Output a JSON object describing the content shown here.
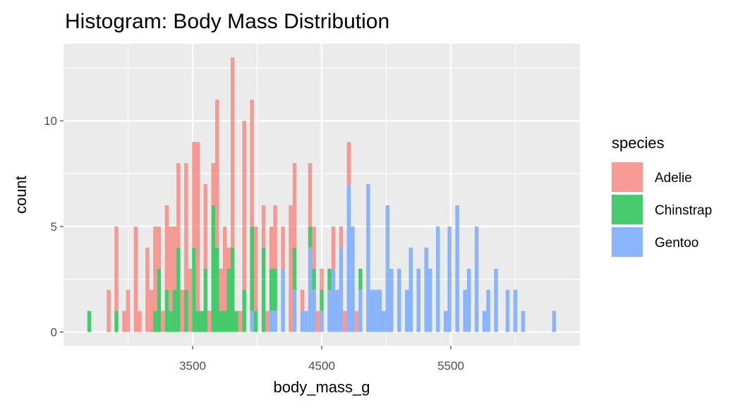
{
  "chart_data": {
    "type": "bar",
    "subtype": "stacked-histogram",
    "title": "Histogram: Body Mass Distribution",
    "xlabel": "body_mass_g",
    "ylabel": "count",
    "xlim": [
      2500,
      6500
    ],
    "ylim": [
      -0.65,
      13.65
    ],
    "x_ticks": [
      3500,
      4500,
      5500
    ],
    "x_tick_labels": [
      "3500",
      "4500",
      "5500"
    ],
    "y_ticks": [
      0,
      5,
      10
    ],
    "y_tick_labels": [
      "0",
      "5",
      "10"
    ],
    "grid": true,
    "legend_position": "right",
    "legend_title": "species",
    "first_bin_center": 2700,
    "binwidth": 30,
    "series": [
      {
        "name": "Adelie",
        "color": "#F8766D",
        "values": [
          0,
          0,
          0,
          0,
          0,
          2,
          0,
          4,
          0,
          1,
          2,
          0,
          5,
          1,
          0,
          4,
          2,
          4,
          2,
          1,
          4,
          4,
          3,
          4,
          2,
          6,
          3,
          5,
          8,
          0,
          4,
          1,
          2,
          7,
          2,
          4,
          1,
          9,
          0,
          1,
          8,
          0,
          6,
          4,
          0,
          2,
          1,
          2,
          3,
          0,
          2,
          0,
          6,
          4,
          0,
          1,
          0,
          3,
          2,
          1,
          1,
          0,
          0,
          2,
          0,
          1,
          1,
          2,
          0,
          1,
          0,
          0,
          0,
          0,
          0,
          0,
          0,
          0,
          0,
          0,
          0,
          0,
          0,
          0,
          0,
          0,
          0,
          0,
          0,
          0,
          0,
          0,
          0,
          0,
          0,
          0,
          0,
          0,
          0,
          0,
          0,
          0,
          0,
          0,
          0,
          0,
          0,
          0,
          0,
          0,
          0,
          0,
          0,
          0,
          0,
          0,
          0,
          0,
          0,
          0,
          0
        ]
      },
      {
        "name": "Chinstrap",
        "color": "#00BA38",
        "values": [
          1,
          0,
          0,
          0,
          0,
          0,
          0,
          1,
          0,
          0,
          0,
          0,
          0,
          0,
          0,
          0,
          0,
          1,
          3,
          0,
          2,
          1,
          2,
          4,
          0,
          2,
          0,
          4,
          1,
          1,
          3,
          0,
          6,
          4,
          1,
          1,
          3,
          4,
          1,
          0,
          2,
          0,
          4,
          1,
          0,
          4,
          0,
          2,
          2,
          0,
          0,
          0,
          0,
          2,
          0,
          0,
          0,
          1,
          1,
          0,
          1,
          0,
          1,
          0,
          0,
          0,
          0,
          0,
          0,
          0,
          1,
          0,
          0,
          0,
          0,
          0,
          0,
          0,
          0,
          0,
          0,
          0,
          0,
          0,
          0,
          0,
          0,
          0,
          0,
          0,
          0,
          0,
          0,
          0,
          0,
          0,
          0,
          0,
          0,
          0,
          0,
          0,
          0,
          0,
          0,
          0,
          0,
          0,
          0,
          0,
          0,
          0,
          0,
          0,
          0,
          0,
          0,
          0,
          0,
          0,
          0
        ]
      },
      {
        "name": "Gentoo",
        "color": "#619CFF",
        "values": [
          0,
          0,
          0,
          0,
          0,
          0,
          0,
          0,
          0,
          0,
          0,
          0,
          0,
          0,
          0,
          0,
          0,
          0,
          0,
          0,
          0,
          0,
          0,
          0,
          0,
          0,
          0,
          0,
          0,
          0,
          0,
          0,
          0,
          0,
          0,
          0,
          0,
          0,
          0,
          0,
          0,
          0,
          1,
          0,
          0,
          0,
          0,
          1,
          1,
          0,
          3,
          0,
          0,
          2,
          0,
          1,
          1,
          4,
          2,
          0,
          1,
          0,
          2,
          3,
          2,
          4,
          0,
          7,
          5,
          0,
          2,
          0,
          7,
          2,
          2,
          2,
          1,
          6,
          3,
          0,
          3,
          0,
          2,
          4,
          0,
          3,
          0,
          4,
          3,
          0,
          5,
          0,
          1,
          5,
          0,
          6,
          0,
          2,
          3,
          0,
          5,
          0,
          1,
          2,
          0,
          3,
          0,
          0,
          2,
          0,
          2,
          0,
          1,
          0,
          0,
          0,
          0,
          0,
          0,
          0,
          1
        ]
      }
    ]
  }
}
